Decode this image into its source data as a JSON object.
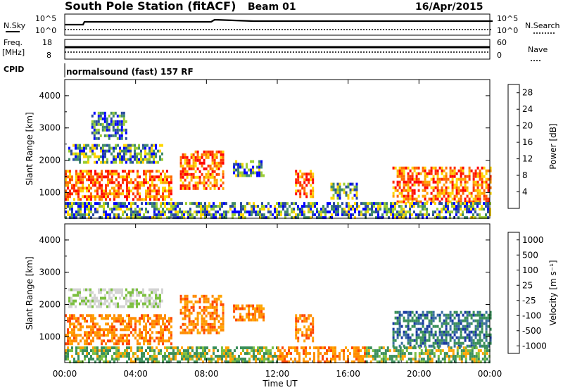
{
  "header": {
    "station": "South Pole Station (fitACF)",
    "beam": "Beam 01",
    "date": "16/Apr/2015",
    "cpid": "normalsound (fast) 157 RF"
  },
  "side_labels": {
    "n_sky": "N.Sky",
    "n_search": "N.Search",
    "freq": "Freq.",
    "mhz": "[MHz]",
    "nave": "Nave",
    "cpid": "CPID"
  },
  "noise_axis": {
    "left_ticks": [
      "10^5",
      "10^0"
    ],
    "right_ticks": [
      "10^5",
      "10^0"
    ]
  },
  "freq_axis": {
    "left_ticks": [
      "18",
      "8"
    ],
    "right_ticks": [
      "60",
      "0"
    ]
  },
  "colors": {
    "power_scale": [
      "#0000ff",
      "#2a4aa0",
      "#3f8a6a",
      "#9acd32",
      "#ffd700",
      "#ffa500",
      "#ff6a00",
      "#ff3000",
      "#ff0000"
    ],
    "velocity_scale": [
      "#ff0000",
      "#ff4500",
      "#ff8c00",
      "#ffa500",
      "#d3d3d3",
      "#7cbf40",
      "#3a8f5a",
      "#3a6fa0",
      "#1a3aa0"
    ]
  },
  "chart_data": [
    {
      "type": "heatmap",
      "panel": "power",
      "ylabel": "Slant Range [km]",
      "xlabel": "Time UT",
      "x_ticks": [
        "00:00",
        "04:00",
        "08:00",
        "12:00",
        "16:00",
        "20:00",
        "00:00"
      ],
      "y_ticks": [
        "1000",
        "2000",
        "3000",
        "4000"
      ],
      "ylim": [
        200,
        4500
      ],
      "xlim_hours": [
        0,
        24
      ],
      "colorbar": {
        "label": "Power [dB]",
        "ticks": [
          "4",
          "8",
          "12",
          "16",
          "20",
          "24",
          "28"
        ],
        "range": [
          0,
          30
        ]
      },
      "regions": [
        {
          "t0": 0.0,
          "t1": 6.0,
          "r0": 800,
          "r1": 1700,
          "level": "high"
        },
        {
          "t0": 0.2,
          "t1": 5.5,
          "r0": 1900,
          "r1": 2500,
          "level": "mid"
        },
        {
          "t0": 1.5,
          "t1": 3.5,
          "r0": 2700,
          "r1": 3500,
          "level": "low"
        },
        {
          "t0": 6.5,
          "t1": 9.0,
          "r0": 1100,
          "r1": 2300,
          "level": "high"
        },
        {
          "t0": 9.5,
          "t1": 11.2,
          "r0": 1500,
          "r1": 2000,
          "level": "mid"
        },
        {
          "t0": 13.0,
          "t1": 14.0,
          "r0": 900,
          "r1": 1700,
          "level": "high"
        },
        {
          "t0": 15.0,
          "t1": 16.5,
          "r0": 800,
          "r1": 1300,
          "level": "mid"
        },
        {
          "t0": 18.5,
          "t1": 24.0,
          "r0": 700,
          "r1": 1800,
          "level": "high"
        },
        {
          "t0": 0.0,
          "t1": 24.0,
          "r0": 250,
          "r1": 700,
          "level": "mid"
        }
      ]
    },
    {
      "type": "heatmap",
      "panel": "velocity",
      "ylabel": "Slant Range [km]",
      "xlabel": "Time UT",
      "x_ticks": [
        "00:00",
        "04:00",
        "08:00",
        "12:00",
        "16:00",
        "20:00",
        "00:00"
      ],
      "y_ticks": [
        "1000",
        "2000",
        "3000",
        "4000"
      ],
      "ylim": [
        200,
        4500
      ],
      "xlim_hours": [
        0,
        24
      ],
      "colorbar": {
        "label": "Velocity [m s⁻¹]",
        "ticks": [
          "1000",
          "500",
          "100",
          "25",
          "-25",
          "-100",
          "-500",
          "-1000"
        ],
        "range": [
          -1000,
          1000
        ]
      },
      "regions": [
        {
          "t0": 0.0,
          "t1": 6.0,
          "r0": 800,
          "r1": 1700,
          "level": "neg"
        },
        {
          "t0": 0.2,
          "t1": 5.5,
          "r0": 1900,
          "r1": 2500,
          "level": "gray"
        },
        {
          "t0": 6.5,
          "t1": 9.0,
          "r0": 1100,
          "r1": 2300,
          "level": "neg"
        },
        {
          "t0": 9.5,
          "t1": 11.2,
          "r0": 1500,
          "r1": 2000,
          "level": "neg"
        },
        {
          "t0": 13.0,
          "t1": 14.0,
          "r0": 900,
          "r1": 1700,
          "level": "neg"
        },
        {
          "t0": 18.5,
          "t1": 24.0,
          "r0": 700,
          "r1": 1800,
          "level": "pos"
        },
        {
          "t0": 0.0,
          "t1": 12.0,
          "r0": 250,
          "r1": 700,
          "level": "pos_small"
        },
        {
          "t0": 12.0,
          "t1": 17.0,
          "r0": 250,
          "r1": 700,
          "level": "neg"
        },
        {
          "t0": 17.0,
          "t1": 24.0,
          "r0": 250,
          "r1": 700,
          "level": "pos_small"
        }
      ]
    }
  ]
}
